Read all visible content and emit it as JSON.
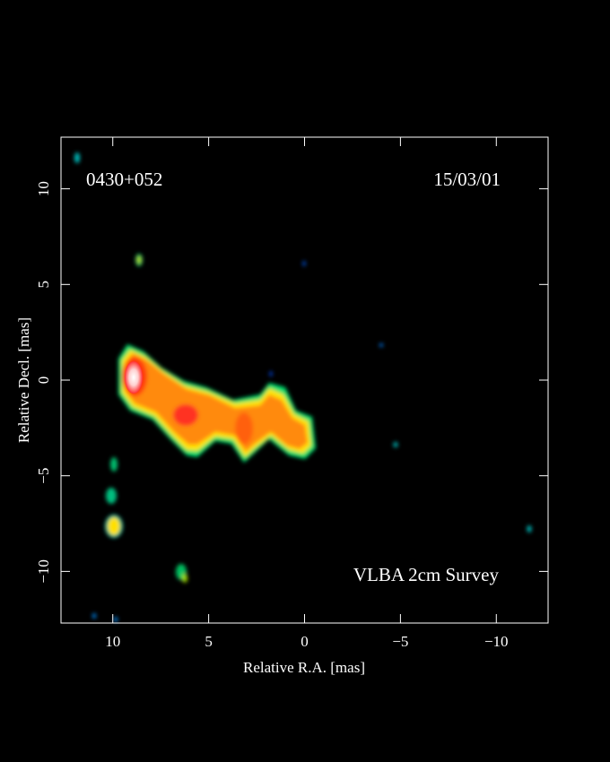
{
  "chart_data": {
    "type": "image",
    "source_label": "0430+052",
    "date_label": "15/03/01",
    "survey_label": "VLBA 2cm Survey",
    "x_label": "Relative R.A. [mas]",
    "y_label": "Relative Decl. [mas]",
    "xlim": [
      12.7,
      -12.7
    ],
    "ylim": [
      -12.7,
      12.7
    ],
    "xticks": [
      10,
      5,
      0,
      {
        "value": -5,
        "label": "−5"
      },
      {
        "value": -10,
        "label": "−10"
      }
    ],
    "yticks": [
      {
        "value": -10,
        "label": "−10"
      },
      {
        "value": -5,
        "label": "−5"
      },
      0,
      5,
      10
    ]
  }
}
